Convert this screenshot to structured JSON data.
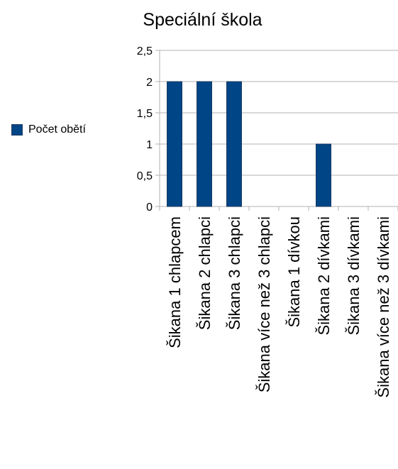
{
  "chart_data": {
    "type": "bar",
    "title": "Speciální škola",
    "categories": [
      "Šikana 1 chlapcem",
      "Šikana 2 chlapci",
      "Šikana 3 chlapci",
      "Šikana více než 3 chlapci",
      "Šikana 1 dívkou",
      "Šikana 2 dívkami",
      "Šikana 3 dívkami",
      "Šikana více než 3 dívkami"
    ],
    "series": [
      {
        "name": "Počet obětí",
        "values": [
          2,
          2,
          2,
          0,
          0,
          1,
          0,
          0
        ],
        "color": "#004586"
      }
    ],
    "ylim": [
      0,
      2.5
    ],
    "yticks": [
      "0",
      "0,5",
      "1",
      "1,5",
      "2",
      "2,5"
    ],
    "grid": true,
    "legend_position": "left"
  }
}
